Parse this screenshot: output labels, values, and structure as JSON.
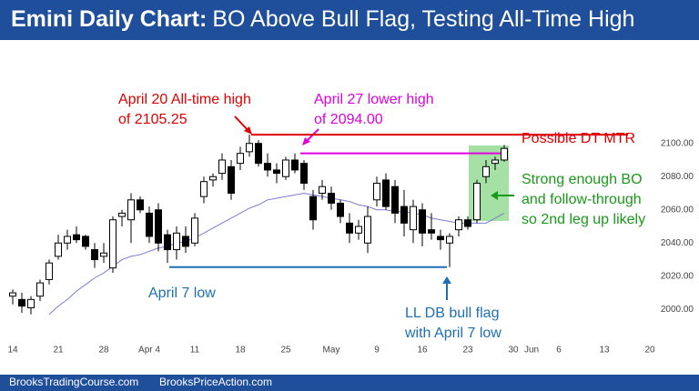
{
  "chart_data": {
    "type": "candlestick",
    "title_bold": "Emini Daily Chart:",
    "title_rest": "BO Above Bull Flag, Testing All-Time High",
    "categories": [
      "14",
      null,
      null,
      null,
      null,
      "21",
      null,
      null,
      null,
      null,
      "28",
      null,
      null,
      null,
      null,
      "Apr 4",
      null,
      null,
      null,
      null,
      "11",
      null,
      null,
      null,
      null,
      "18",
      null,
      null,
      null,
      null,
      "25",
      null,
      null,
      null,
      null,
      "May",
      null,
      null,
      null,
      null,
      "9",
      null,
      null,
      null,
      null,
      "16",
      null,
      null,
      null,
      null,
      "23",
      null,
      null,
      null,
      null,
      "30",
      null,
      "Jun",
      null,
      null,
      "6",
      null,
      null,
      null,
      null,
      "13",
      null,
      null,
      null,
      null,
      "20"
    ],
    "open": [
      2008,
      2006,
      2001,
      2008,
      2018,
      2032,
      2040,
      2045,
      2044,
      2036,
      2032,
      2025,
      2056,
      2054,
      2066,
      2058,
      2060,
      2045,
      2036,
      2044,
      2040,
      2068,
      2078,
      2082,
      2086,
      2088,
      2095,
      2100,
      2088,
      2084,
      2080,
      2090,
      2088,
      2068,
      2070,
      2070,
      2064,
      2052,
      2046,
      2040,
      2066,
      2078,
      2074,
      2062,
      2048,
      2060,
      2048,
      2044,
      2040,
      2048,
      2054,
      2054,
      2080,
      2088,
      2090,
      null,
      null,
      null,
      null,
      null,
      null,
      null,
      null,
      null,
      null,
      null,
      null,
      null,
      null,
      null,
      null
    ],
    "high": [
      2012,
      2010,
      2008,
      2018,
      2030,
      2045,
      2048,
      2050,
      2045,
      2040,
      2040,
      2056,
      2060,
      2070,
      2068,
      2062,
      2064,
      2048,
      2050,
      2050,
      2058,
      2080,
      2082,
      2094,
      2090,
      2098,
      2105.25,
      2102,
      2094,
      2088,
      2092,
      2094,
      2090,
      2072,
      2078,
      2074,
      2066,
      2058,
      2054,
      2062,
      2080,
      2082,
      2078,
      2072,
      2066,
      2064,
      2058,
      2048,
      2046,
      2056,
      2056,
      2078,
      2090,
      2092,
      2099,
      null,
      null,
      null,
      null,
      null,
      null,
      null,
      null,
      null,
      null,
      null,
      null,
      null,
      null,
      null,
      null
    ],
    "low": [
      2003,
      1998,
      1997,
      2005,
      2015,
      2030,
      2036,
      2040,
      2036,
      2025,
      2028,
      2022,
      2050,
      2040,
      2058,
      2040,
      2035,
      2028,
      2030,
      2034,
      2038,
      2064,
      2074,
      2078,
      2066,
      2084,
      2092,
      2086,
      2080,
      2076,
      2078,
      2082,
      2072,
      2048,
      2066,
      2060,
      2052,
      2040,
      2042,
      2034,
      2062,
      2060,
      2052,
      2044,
      2040,
      2038,
      2042,
      2036,
      2025.5,
      2044,
      2048,
      2052,
      2076,
      2084,
      2089,
      null,
      null,
      null,
      null,
      null,
      null,
      null,
      null,
      null,
      null,
      null,
      null,
      null,
      null,
      null,
      null
    ],
    "close": [
      2010,
      2002,
      2006,
      2016,
      2028,
      2040,
      2044,
      2042,
      2038,
      2030,
      2034,
      2054,
      2058,
      2066,
      2060,
      2044,
      2040,
      2036,
      2046,
      2038,
      2055,
      2077,
      2080,
      2090,
      2070,
      2094,
      2100,
      2088,
      2084,
      2082,
      2090,
      2084,
      2076,
      2054,
      2074,
      2064,
      2056,
      2046,
      2050,
      2056,
      2076,
      2062,
      2058,
      2052,
      2062,
      2046,
      2046,
      2042,
      2044,
      2054,
      2050,
      2076,
      2086,
      2090,
      2097,
      null,
      null,
      null,
      null,
      null,
      null,
      null,
      null,
      null,
      null,
      null,
      null,
      null,
      null,
      null,
      null
    ],
    "moving_average": {
      "color": "#7b7bd6",
      "values": [
        null,
        null,
        null,
        null,
        1997,
        2002,
        2006,
        2011,
        2015,
        2019,
        2022,
        2026,
        2030,
        2032,
        2033,
        2035,
        2037,
        2038,
        2040,
        2041,
        2043,
        2046,
        2049,
        2052,
        2055,
        2058,
        2061,
        2063,
        2066,
        2067,
        2068,
        2069,
        2070,
        2069,
        2068,
        2067,
        2066,
        2065,
        2063,
        2062,
        2060,
        2060,
        2059,
        2059,
        2058,
        2057,
        2055,
        2054,
        2053,
        2052,
        2052,
        2052,
        2052,
        2055,
        2058,
        null,
        null,
        null,
        null,
        null,
        null,
        null,
        null,
        null,
        null,
        null,
        null,
        null,
        null,
        null,
        null
      ]
    },
    "ylim": [
      1981,
      2159
    ],
    "yticks": [
      {
        "value": 2000,
        "label": "2000.00"
      },
      {
        "value": 2020,
        "label": "2020.00"
      },
      {
        "value": 2040,
        "label": "2040.00"
      },
      {
        "value": 2060,
        "label": "2060.00"
      },
      {
        "value": 2080,
        "label": "2080.00"
      },
      {
        "value": 2100,
        "label": "2100.00"
      }
    ],
    "levels": [
      {
        "value": 2105.25,
        "color": "#e00000"
      },
      {
        "value": 2094,
        "color": "#e000e0"
      },
      {
        "value": 2025.5,
        "color": "#1f6fb5"
      }
    ],
    "annotations": [
      {
        "lines": [
          "April 20 All-time high",
          "of 2105.25"
        ],
        "color": "#e00000"
      },
      {
        "lines": [
          "April 27 lower high",
          "of 2094.00"
        ],
        "color": "#e000e0"
      },
      {
        "lines": [
          "Possible DT MTR"
        ],
        "color": "#e00000"
      },
      {
        "lines": [
          "Strong enough BO",
          "and follow-through",
          "so 2nd leg up likely"
        ],
        "color": "#1a9a1a"
      },
      {
        "lines": [
          "April 7 low"
        ],
        "color": "#1f6fb5"
      },
      {
        "lines": [
          "LL DB bull flag",
          "with April 7 low"
        ],
        "color": "#1f6fb5"
      }
    ],
    "footer": [
      "BrooksTradingCourse.com",
      "BrooksPriceAction.com"
    ]
  }
}
